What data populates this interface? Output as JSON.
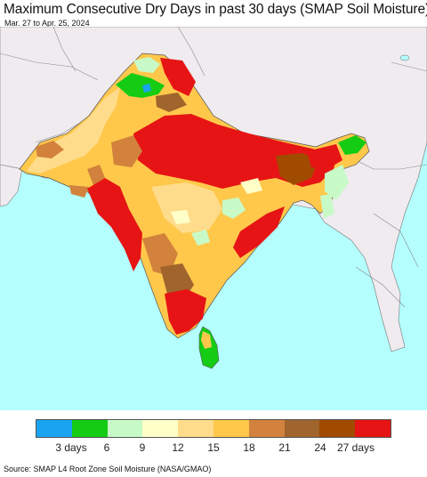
{
  "title": "Maximum Consecutive Dry Days in past 30 days (SMAP Soil Moisture)",
  "subtitle": "Mar. 27 to Apr. 25, 2024",
  "source": "Source: SMAP L4 Root Zone Soil Moisture (NASA/GMAO)",
  "legend": {
    "colors": [
      "#1aa3f0",
      "#14cc14",
      "#c8fac8",
      "#ffffc8",
      "#ffdc8c",
      "#ffc84b",
      "#d2823c",
      "#a0642d",
      "#a04b00",
      "#e61414"
    ],
    "ticks": [
      {
        "label": "3 days",
        "pos": 0.1
      },
      {
        "label": "6",
        "pos": 0.2
      },
      {
        "label": "9",
        "pos": 0.3
      },
      {
        "label": "12",
        "pos": 0.4
      },
      {
        "label": "15",
        "pos": 0.5
      },
      {
        "label": "18",
        "pos": 0.6
      },
      {
        "label": "21",
        "pos": 0.7
      },
      {
        "label": "24",
        "pos": 0.8
      },
      {
        "label": "27 days",
        "pos": 0.9
      }
    ]
  },
  "colors": {
    "ocean": "#b4fefe",
    "land_outside": "#efebef",
    "dry_red": "#e61414",
    "orange": "#ffc84b",
    "light_orange": "#ffdc8c",
    "brown": "#a04b00",
    "tan": "#d2823c",
    "green": "#14cc14",
    "light_green": "#c8fac8",
    "blue": "#1aa3f0"
  }
}
